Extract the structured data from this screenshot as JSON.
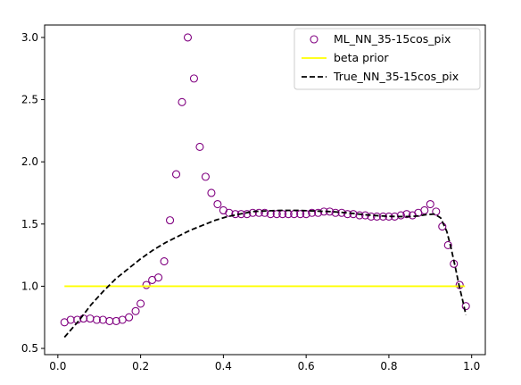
{
  "chart_data": {
    "type": "line",
    "title": "",
    "xlabel": "",
    "ylabel": "",
    "xlim": [
      -0.032,
      1.033
    ],
    "ylim": [
      0.45,
      3.1
    ],
    "xticks": [
      0.0,
      0.2,
      0.4,
      0.6,
      0.8,
      1.0
    ],
    "xtick_labels": [
      "0.0",
      "0.2",
      "0.4",
      "0.6",
      "0.8",
      "1.0"
    ],
    "yticks": [
      0.5,
      1.0,
      1.5,
      2.0,
      2.5,
      3.0
    ],
    "ytick_labels": [
      "0.5",
      "1.0",
      "1.5",
      "2.0",
      "2.5",
      "3.0"
    ],
    "grid": false,
    "legend_position": "top-right",
    "series": [
      {
        "name": "ML_NN_35-15cos_pix",
        "kind": "scatter",
        "marker": "open-circle",
        "color": "#800080",
        "points": [
          [
            0.016,
            0.71
          ],
          [
            0.031,
            0.73
          ],
          [
            0.047,
            0.73
          ],
          [
            0.062,
            0.74
          ],
          [
            0.078,
            0.74
          ],
          [
            0.094,
            0.73
          ],
          [
            0.109,
            0.73
          ],
          [
            0.125,
            0.72
          ],
          [
            0.141,
            0.72
          ],
          [
            0.156,
            0.73
          ],
          [
            0.172,
            0.75
          ],
          [
            0.188,
            0.8
          ],
          [
            0.2,
            0.86
          ],
          [
            0.214,
            1.01
          ],
          [
            0.228,
            1.05
          ],
          [
            0.243,
            1.07
          ],
          [
            0.257,
            1.2
          ],
          [
            0.271,
            1.53
          ],
          [
            0.286,
            1.9
          ],
          [
            0.3,
            2.48
          ],
          [
            0.314,
            3.0
          ],
          [
            0.329,
            2.67
          ],
          [
            0.343,
            2.12
          ],
          [
            0.357,
            1.88
          ],
          [
            0.371,
            1.75
          ],
          [
            0.386,
            1.66
          ],
          [
            0.4,
            1.61
          ],
          [
            0.414,
            1.59
          ],
          [
            0.429,
            1.58
          ],
          [
            0.443,
            1.58
          ],
          [
            0.457,
            1.58
          ],
          [
            0.471,
            1.59
          ],
          [
            0.486,
            1.59
          ],
          [
            0.5,
            1.59
          ],
          [
            0.514,
            1.58
          ],
          [
            0.529,
            1.58
          ],
          [
            0.543,
            1.58
          ],
          [
            0.557,
            1.58
          ],
          [
            0.571,
            1.58
          ],
          [
            0.586,
            1.58
          ],
          [
            0.6,
            1.58
          ],
          [
            0.614,
            1.59
          ],
          [
            0.629,
            1.59
          ],
          [
            0.643,
            1.6
          ],
          [
            0.657,
            1.6
          ],
          [
            0.671,
            1.59
          ],
          [
            0.686,
            1.59
          ],
          [
            0.7,
            1.58
          ],
          [
            0.714,
            1.58
          ],
          [
            0.729,
            1.57
          ],
          [
            0.743,
            1.57
          ],
          [
            0.757,
            1.56
          ],
          [
            0.771,
            1.56
          ],
          [
            0.786,
            1.56
          ],
          [
            0.8,
            1.56
          ],
          [
            0.814,
            1.56
          ],
          [
            0.829,
            1.57
          ],
          [
            0.843,
            1.58
          ],
          [
            0.857,
            1.57
          ],
          [
            0.871,
            1.59
          ],
          [
            0.886,
            1.61
          ],
          [
            0.9,
            1.66
          ],
          [
            0.914,
            1.6
          ],
          [
            0.929,
            1.48
          ],
          [
            0.943,
            1.33
          ],
          [
            0.957,
            1.18
          ],
          [
            0.971,
            1.01
          ],
          [
            0.986,
            0.84
          ]
        ]
      },
      {
        "name": "beta prior",
        "kind": "line",
        "style": "solid",
        "color": "#ffff00",
        "points": [
          [
            0.016,
            1.0
          ],
          [
            0.984,
            1.0
          ]
        ]
      },
      {
        "name": "True_NN_35-15cos_pix",
        "kind": "line",
        "style": "dashed",
        "color": "#000000",
        "points": [
          [
            0.016,
            0.59
          ],
          [
            0.05,
            0.72
          ],
          [
            0.08,
            0.85
          ],
          [
            0.11,
            0.96
          ],
          [
            0.14,
            1.06
          ],
          [
            0.17,
            1.14
          ],
          [
            0.2,
            1.22
          ],
          [
            0.23,
            1.29
          ],
          [
            0.26,
            1.35
          ],
          [
            0.29,
            1.4
          ],
          [
            0.32,
            1.45
          ],
          [
            0.35,
            1.49
          ],
          [
            0.38,
            1.53
          ],
          [
            0.41,
            1.56
          ],
          [
            0.44,
            1.58
          ],
          [
            0.47,
            1.6
          ],
          [
            0.5,
            1.605
          ],
          [
            0.54,
            1.61
          ],
          [
            0.58,
            1.61
          ],
          [
            0.62,
            1.605
          ],
          [
            0.66,
            1.6
          ],
          [
            0.7,
            1.59
          ],
          [
            0.74,
            1.575
          ],
          [
            0.78,
            1.565
          ],
          [
            0.82,
            1.56
          ],
          [
            0.85,
            1.56
          ],
          [
            0.87,
            1.565
          ],
          [
            0.89,
            1.575
          ],
          [
            0.91,
            1.58
          ],
          [
            0.925,
            1.55
          ],
          [
            0.94,
            1.44
          ],
          [
            0.95,
            1.31
          ],
          [
            0.96,
            1.16
          ],
          [
            0.97,
            1.0
          ],
          [
            0.978,
            0.89
          ],
          [
            0.986,
            0.77
          ]
        ]
      }
    ]
  }
}
